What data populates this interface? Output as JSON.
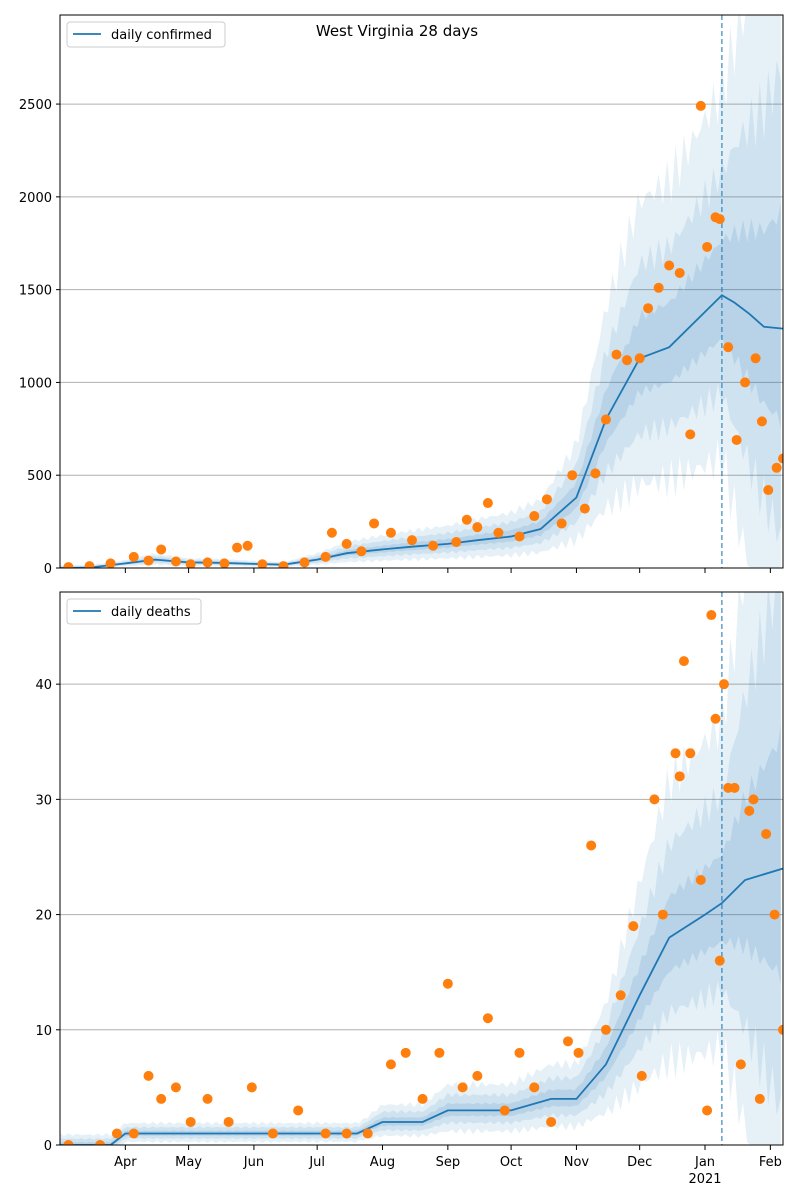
{
  "figure": {
    "title": "West Virginia 28 days",
    "x_tick_labels": [
      "Apr",
      "May",
      "Jun",
      "Jul",
      "Aug",
      "Sep",
      "Oct",
      "Nov",
      "Dec",
      "Jan",
      "Feb"
    ],
    "x_year_label": "2021",
    "forecast_start": "2021-01-09"
  },
  "colors": {
    "line": "#1f77b4",
    "band": "#1f77b4",
    "points": "#ff7f0e",
    "grid": "#b0b0b0"
  },
  "chart_data": [
    {
      "type": "line",
      "legend": "daily confirmed",
      "legend_position": "top-left",
      "grid": "horizontal",
      "xlim": [
        "2020-03-01",
        "2021-02-07"
      ],
      "ylim": [
        0,
        2980
      ],
      "y_ticks": [
        0,
        500,
        1000,
        1500,
        2000,
        2500
      ],
      "series": [
        {
          "name": "daily confirmed",
          "x": [
            "2020-03-01",
            "2020-03-15",
            "2020-04-01",
            "2020-04-15",
            "2020-05-01",
            "2020-05-15",
            "2020-06-01",
            "2020-06-15",
            "2020-07-01",
            "2020-07-15",
            "2020-08-01",
            "2020-08-15",
            "2020-09-01",
            "2020-09-15",
            "2020-10-01",
            "2020-10-15",
            "2020-11-01",
            "2020-11-15",
            "2020-12-01",
            "2020-12-15",
            "2021-01-01",
            "2021-01-09",
            "2021-01-15",
            "2021-01-22",
            "2021-01-29",
            "2021-02-07"
          ],
          "values": [
            0,
            2,
            25,
            45,
            30,
            28,
            22,
            18,
            45,
            80,
            100,
            115,
            130,
            150,
            170,
            210,
            380,
            800,
            1130,
            1190,
            1380,
            1470,
            1430,
            1370,
            1300,
            1290
          ]
        }
      ],
      "points": [
        [
          "2020-03-05",
          5
        ],
        [
          "2020-03-15",
          10
        ],
        [
          "2020-03-25",
          25
        ],
        [
          "2020-04-05",
          60
        ],
        [
          "2020-04-12",
          40
        ],
        [
          "2020-04-18",
          100
        ],
        [
          "2020-04-25",
          35
        ],
        [
          "2020-05-02",
          20
        ],
        [
          "2020-05-10",
          30
        ],
        [
          "2020-05-18",
          25
        ],
        [
          "2020-05-24",
          110
        ],
        [
          "2020-05-29",
          120
        ],
        [
          "2020-06-05",
          20
        ],
        [
          "2020-06-15",
          10
        ],
        [
          "2020-06-25",
          30
        ],
        [
          "2020-07-05",
          60
        ],
        [
          "2020-07-08",
          190
        ],
        [
          "2020-07-15",
          130
        ],
        [
          "2020-07-22",
          90
        ],
        [
          "2020-07-28",
          240
        ],
        [
          "2020-08-05",
          190
        ],
        [
          "2020-08-15",
          150
        ],
        [
          "2020-08-25",
          120
        ],
        [
          "2020-09-05",
          140
        ],
        [
          "2020-09-10",
          260
        ],
        [
          "2020-09-15",
          220
        ],
        [
          "2020-09-20",
          350
        ],
        [
          "2020-09-25",
          190
        ],
        [
          "2020-10-05",
          170
        ],
        [
          "2020-10-12",
          280
        ],
        [
          "2020-10-18",
          370
        ],
        [
          "2020-10-25",
          240
        ],
        [
          "2020-10-30",
          500
        ],
        [
          "2020-11-05",
          320
        ],
        [
          "2020-11-10",
          510
        ],
        [
          "2020-11-15",
          800
        ],
        [
          "2020-11-20",
          1150
        ],
        [
          "2020-11-25",
          1120
        ],
        [
          "2020-12-01",
          1130
        ],
        [
          "2020-12-05",
          1400
        ],
        [
          "2020-12-10",
          1510
        ],
        [
          "2020-12-15",
          1630
        ],
        [
          "2020-12-20",
          1590
        ],
        [
          "2020-12-25",
          720
        ],
        [
          "2020-12-30",
          2490
        ],
        [
          "2021-01-02",
          1730
        ],
        [
          "2021-01-06",
          1890
        ],
        [
          "2021-01-08",
          1880
        ],
        [
          "2021-01-12",
          1190
        ],
        [
          "2021-01-16",
          690
        ],
        [
          "2021-01-20",
          1000
        ],
        [
          "2021-01-25",
          1130
        ],
        [
          "2021-01-28",
          790
        ],
        [
          "2021-01-31",
          420
        ],
        [
          "2021-02-04",
          540
        ],
        [
          "2021-02-07",
          590
        ]
      ]
    },
    {
      "type": "line",
      "legend": "daily deaths",
      "legend_position": "top-left",
      "grid": "horizontal",
      "xlim": [
        "2020-03-01",
        "2021-02-07"
      ],
      "ylim": [
        0,
        48
      ],
      "y_ticks": [
        0,
        10,
        20,
        30,
        40
      ],
      "series": [
        {
          "name": "daily deaths",
          "x": [
            "2020-03-01",
            "2020-03-25",
            "2020-04-01",
            "2020-05-15",
            "2020-06-15",
            "2020-07-20",
            "2020-08-01",
            "2020-08-20",
            "2020-09-01",
            "2020-09-20",
            "2020-10-01",
            "2020-10-20",
            "2020-11-01",
            "2020-11-15",
            "2020-12-01",
            "2020-12-15",
            "2021-01-01",
            "2021-01-09",
            "2021-01-20",
            "2021-02-07"
          ],
          "values": [
            0,
            0,
            1,
            1,
            1,
            1,
            2,
            2,
            3,
            3,
            3,
            4,
            4,
            7,
            13,
            18,
            20,
            21,
            23,
            24
          ]
        }
      ],
      "points": [
        [
          "2020-03-05",
          0
        ],
        [
          "2020-03-20",
          0
        ],
        [
          "2020-03-28",
          1
        ],
        [
          "2020-04-05",
          1
        ],
        [
          "2020-04-12",
          6
        ],
        [
          "2020-04-18",
          4
        ],
        [
          "2020-04-25",
          5
        ],
        [
          "2020-05-02",
          2
        ],
        [
          "2020-05-10",
          4
        ],
        [
          "2020-05-20",
          2
        ],
        [
          "2020-05-31",
          5
        ],
        [
          "2020-06-10",
          1
        ],
        [
          "2020-06-22",
          3
        ],
        [
          "2020-07-05",
          1
        ],
        [
          "2020-07-15",
          1
        ],
        [
          "2020-07-25",
          1
        ],
        [
          "2020-08-05",
          7
        ],
        [
          "2020-08-12",
          8
        ],
        [
          "2020-08-20",
          4
        ],
        [
          "2020-08-28",
          8
        ],
        [
          "2020-09-01",
          14
        ],
        [
          "2020-09-08",
          5
        ],
        [
          "2020-09-15",
          6
        ],
        [
          "2020-09-20",
          11
        ],
        [
          "2020-09-28",
          3
        ],
        [
          "2020-10-05",
          8
        ],
        [
          "2020-10-12",
          5
        ],
        [
          "2020-10-20",
          2
        ],
        [
          "2020-10-28",
          9
        ],
        [
          "2020-11-02",
          8
        ],
        [
          "2020-11-08",
          26
        ],
        [
          "2020-11-15",
          10
        ],
        [
          "2020-11-22",
          13
        ],
        [
          "2020-11-28",
          19
        ],
        [
          "2020-12-02",
          6
        ],
        [
          "2020-12-08",
          30
        ],
        [
          "2020-12-12",
          20
        ],
        [
          "2020-12-18",
          34
        ],
        [
          "2020-12-20",
          32
        ],
        [
          "2020-12-22",
          42
        ],
        [
          "2020-12-25",
          34
        ],
        [
          "2020-12-30",
          23
        ],
        [
          "2021-01-02",
          3
        ],
        [
          "2021-01-04",
          46
        ],
        [
          "2021-01-06",
          37
        ],
        [
          "2021-01-08",
          16
        ],
        [
          "2021-01-10",
          40
        ],
        [
          "2021-01-12",
          31
        ],
        [
          "2021-01-15",
          31
        ],
        [
          "2021-01-18",
          7
        ],
        [
          "2021-01-22",
          29
        ],
        [
          "2021-01-24",
          30
        ],
        [
          "2021-01-27",
          4
        ],
        [
          "2021-01-30",
          27
        ],
        [
          "2021-02-03",
          20
        ],
        [
          "2021-02-07",
          10
        ]
      ]
    }
  ]
}
